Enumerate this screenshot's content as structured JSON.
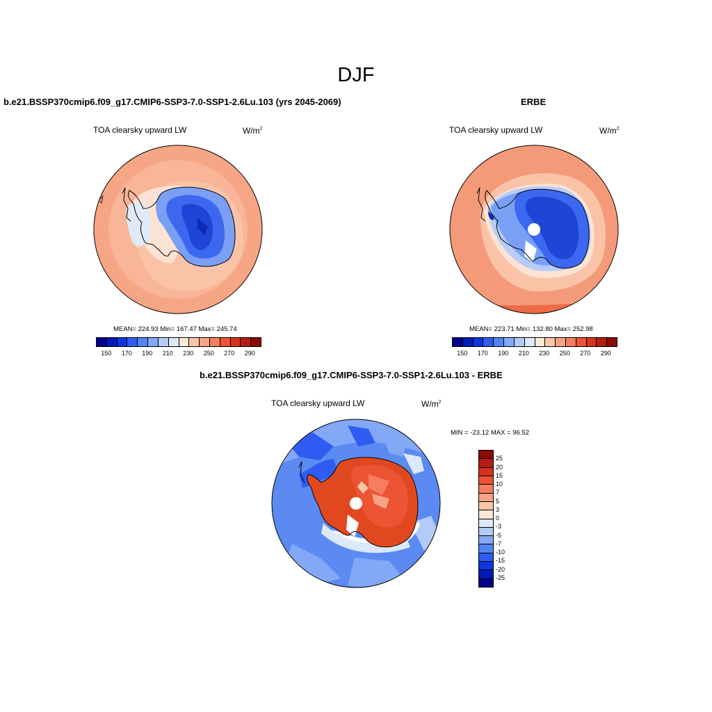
{
  "title": "DJF",
  "panels": {
    "model": {
      "title": "b.e21.BSSP370cmip6.f09_g17.CMIP6-SSP3-7.0-SSP1-2.6Lu.103 (yrs 2045-2069)",
      "variable": "TOA clearsky upward LW",
      "units": "W/m",
      "units_exp": "2",
      "stats": "MEAN= 224.93  Min= 167.47  Max= 245.74"
    },
    "obs": {
      "title": "ERBE",
      "variable": "TOA clearsky upward LW",
      "units": "W/m",
      "units_exp": "2",
      "stats": "MEAN= 223.71  Min= 132.80  Max= 252.98"
    },
    "diff": {
      "title": "b.e21.BSSP370cmip6.f09_g17.CMIP6-SSP3-7.0-SSP1-2.6Lu.103 - ERBE",
      "variable": "TOA clearsky upward LW",
      "units": "W/m",
      "units_exp": "2",
      "stats": "MIN = -23.12 MAX =  96.52"
    }
  },
  "colorbar_abs": {
    "labels": [
      "150",
      "170",
      "190",
      "210",
      "230",
      "250",
      "270",
      "290"
    ],
    "colors": [
      "#00008c",
      "#0019b8",
      "#0c36e3",
      "#2f5df3",
      "#5484f3",
      "#83a8f5",
      "#b3cbf7",
      "#dce9fa",
      "#fde8d6",
      "#fbc6a9",
      "#f8a383",
      "#f47e5f",
      "#ec5433",
      "#d8311c",
      "#b71c10",
      "#8c0a05"
    ]
  },
  "colorbar_diff": {
    "labels": [
      "25",
      "20",
      "15",
      "10",
      "7",
      "5",
      "3",
      "0",
      "-3",
      "-5",
      "-7",
      "-10",
      "-15",
      "-20",
      "-25"
    ],
    "colors": [
      "#8c0a05",
      "#b71c10",
      "#d8311c",
      "#ec5433",
      "#f47e5f",
      "#f8a383",
      "#fbc6a9",
      "#fde8d6",
      "#dce9fa",
      "#b3cbf7",
      "#83a8f5",
      "#5484f3",
      "#2f5df3",
      "#0c36e3",
      "#0019b8",
      "#00008c"
    ]
  }
}
